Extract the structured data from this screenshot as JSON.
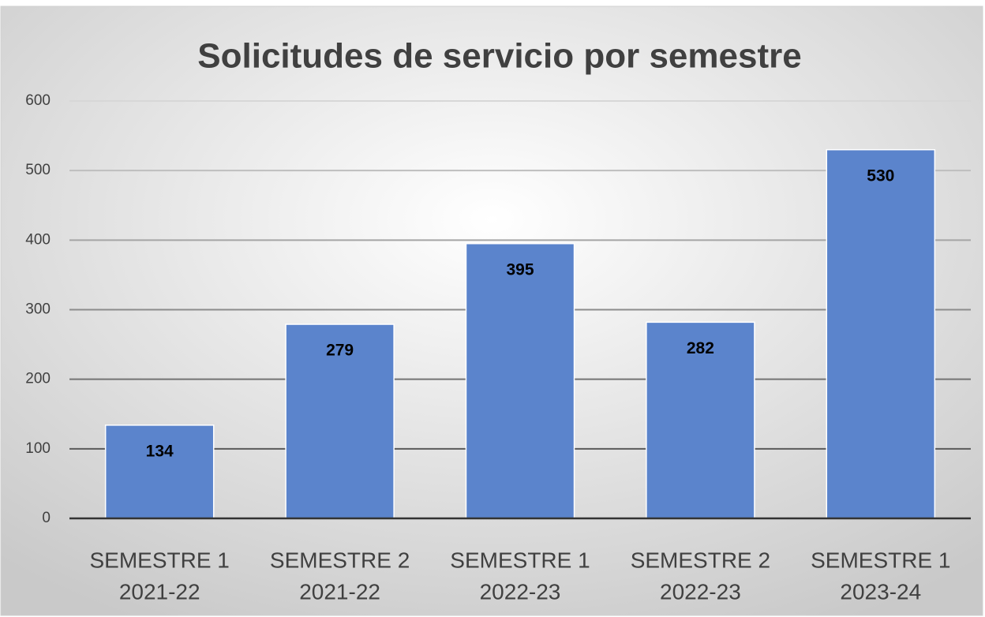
{
  "chart_data": {
    "type": "bar",
    "title": "Solicitudes de servicio por semestre",
    "categories": [
      [
        "SEMESTRE 1",
        "2021-22"
      ],
      [
        "SEMESTRE 2",
        "2021-22"
      ],
      [
        "SEMESTRE 1",
        "2022-23"
      ],
      [
        "SEMESTRE 2",
        "2022-23"
      ],
      [
        "SEMESTRE 1",
        "2023-24"
      ]
    ],
    "values": [
      134,
      279,
      395,
      282,
      530
    ],
    "color": "#5b84cc",
    "ylim": [
      0,
      600
    ],
    "yticks": [
      0,
      100,
      200,
      300,
      400,
      500,
      600
    ],
    "grid": true
  }
}
